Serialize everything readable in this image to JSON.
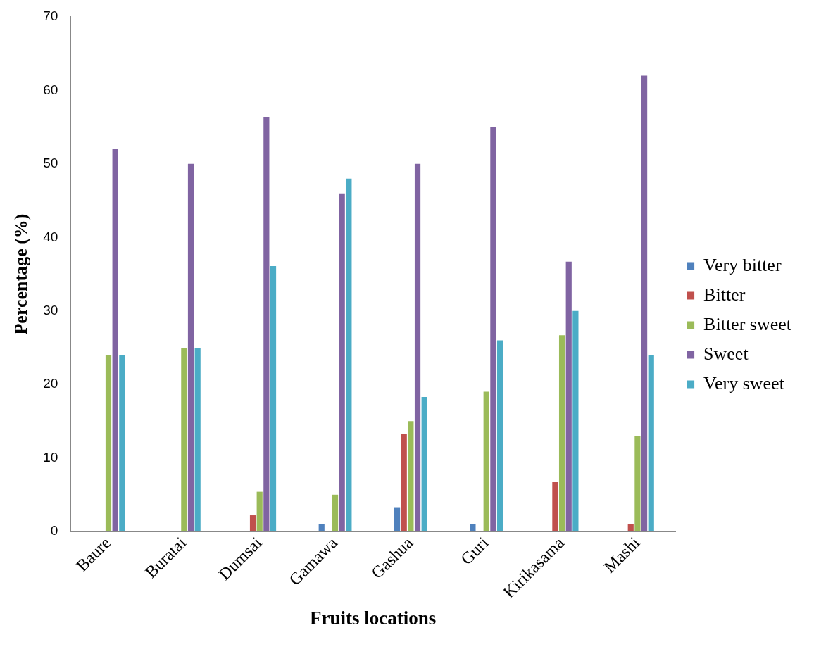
{
  "chart_data": {
    "type": "bar",
    "xlabel": "Fruits locations",
    "ylabel": "Percentage (%)",
    "categories": [
      "Baure",
      "Buratai",
      "Dumsai",
      "Gamawa",
      "Gashua",
      "Guri",
      "Kirikasama",
      "Mashi"
    ],
    "series": [
      {
        "name": "Very bitter",
        "color": "#4f81bd",
        "values": [
          0,
          0,
          0,
          1,
          3.3,
          1,
          0,
          0
        ]
      },
      {
        "name": "Bitter",
        "color": "#c0504d",
        "values": [
          0,
          0,
          2.2,
          0,
          13.3,
          0,
          6.7,
          1
        ]
      },
      {
        "name": "Bitter sweet",
        "color": "#9bbb59",
        "values": [
          24,
          25,
          5.4,
          5,
          15,
          19,
          26.7,
          13
        ]
      },
      {
        "name": "Sweet",
        "color": "#8064a2",
        "values": [
          52,
          50,
          56.4,
          46,
          50,
          55,
          36.7,
          62
        ]
      },
      {
        "name": "Very sweet",
        "color": "#4bacc6",
        "values": [
          24,
          25,
          36.1,
          48,
          18.3,
          26,
          30,
          24
        ]
      }
    ],
    "ylim": [
      0,
      70
    ],
    "yticks": [
      0,
      10,
      20,
      30,
      40,
      50,
      60,
      70
    ],
    "grid": false,
    "legend": "right"
  }
}
